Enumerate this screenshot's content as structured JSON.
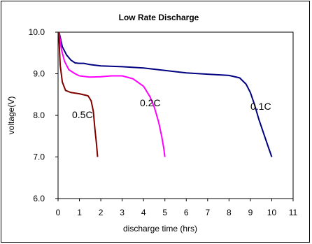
{
  "chart_data": {
    "type": "line",
    "title": "Low Rate Discharge",
    "xlabel": "discharge time (hrs)",
    "ylabel": "voltage(V)",
    "xlim": [
      0,
      11
    ],
    "ylim": [
      6.0,
      10.0
    ],
    "x_ticks": [
      "0",
      "1",
      "2",
      "3",
      "4",
      "5",
      "6",
      "7",
      "8",
      "9",
      "10",
      "11"
    ],
    "y_ticks": [
      "6.0",
      "7.0",
      "8.0",
      "9.0",
      "10.0"
    ],
    "grid": false,
    "series": [
      {
        "name": "0.1C",
        "color": "#000080",
        "points": [
          [
            0.05,
            10.0
          ],
          [
            0.2,
            9.65
          ],
          [
            0.4,
            9.45
          ],
          [
            0.6,
            9.33
          ],
          [
            0.8,
            9.26
          ],
          [
            1.0,
            9.25
          ],
          [
            1.2,
            9.25
          ],
          [
            1.5,
            9.22
          ],
          [
            2.0,
            9.19
          ],
          [
            3.0,
            9.17
          ],
          [
            4.0,
            9.14
          ],
          [
            5.0,
            9.08
          ],
          [
            6.0,
            9.02
          ],
          [
            7.0,
            8.99
          ],
          [
            8.0,
            8.96
          ],
          [
            8.5,
            8.9
          ],
          [
            8.8,
            8.75
          ],
          [
            9.0,
            8.55
          ],
          [
            9.2,
            8.25
          ],
          [
            9.4,
            7.9
          ],
          [
            9.6,
            7.6
          ],
          [
            9.8,
            7.3
          ],
          [
            10.0,
            7.0
          ]
        ]
      },
      {
        "name": "0.2C",
        "color": "#ff00ff",
        "points": [
          [
            0.05,
            10.0
          ],
          [
            0.15,
            9.6
          ],
          [
            0.3,
            9.3
          ],
          [
            0.5,
            9.1
          ],
          [
            0.8,
            9.0
          ],
          [
            1.0,
            8.95
          ],
          [
            1.5,
            8.92
          ],
          [
            2.0,
            8.93
          ],
          [
            2.5,
            8.95
          ],
          [
            3.0,
            8.95
          ],
          [
            3.5,
            8.88
          ],
          [
            4.0,
            8.7
          ],
          [
            4.3,
            8.45
          ],
          [
            4.5,
            8.2
          ],
          [
            4.7,
            7.85
          ],
          [
            4.85,
            7.5
          ],
          [
            4.95,
            7.2
          ],
          [
            5.0,
            7.0
          ]
        ]
      },
      {
        "name": "0.5C",
        "color": "#800000",
        "points": [
          [
            0.03,
            10.0
          ],
          [
            0.1,
            9.2
          ],
          [
            0.2,
            8.8
          ],
          [
            0.35,
            8.6
          ],
          [
            0.6,
            8.55
          ],
          [
            1.0,
            8.52
          ],
          [
            1.4,
            8.47
          ],
          [
            1.55,
            8.35
          ],
          [
            1.65,
            8.1
          ],
          [
            1.72,
            7.7
          ],
          [
            1.8,
            7.3
          ],
          [
            1.85,
            7.0
          ]
        ]
      }
    ],
    "annotations": [
      "0.5C",
      "0.2C",
      "0.1C"
    ]
  }
}
